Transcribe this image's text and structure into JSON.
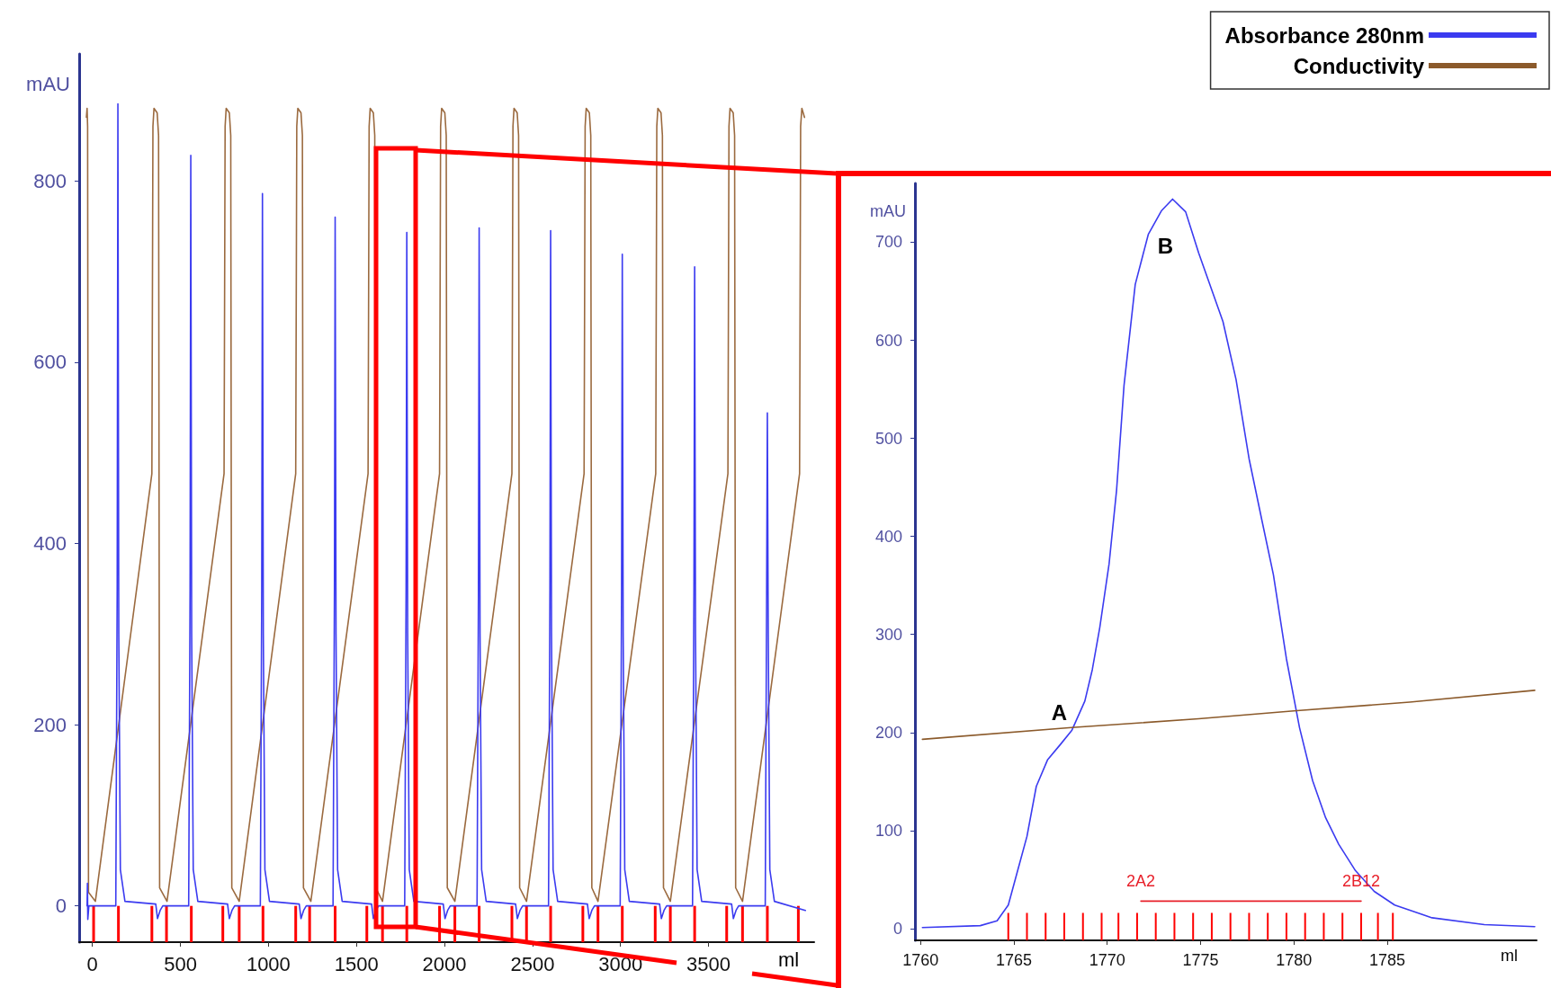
{
  "chart_data": [
    {
      "type": "line",
      "xlabel": "ml",
      "ylabel": "mAU",
      "xlim": [
        -75,
        4100
      ],
      "xticks": [
        0,
        500,
        1000,
        1500,
        2000,
        2500,
        3000,
        3500
      ],
      "ylim": [
        -40,
        940
      ],
      "yticks": [
        0,
        200,
        400,
        600,
        800
      ],
      "marker": "none",
      "line_style": "solid",
      "series": [
        {
          "color": "#9b6a3f",
          "x": [
            -34,
            -30,
            -27,
            -22,
            17,
            338,
            344,
            350,
            368,
            376,
            382,
            424,
            748,
            754,
            760,
            778,
            786,
            792,
            834,
            1155,
            1161,
            1167,
            1185,
            1193,
            1199,
            1241,
            1566,
            1572,
            1578,
            1596,
            1604,
            1610,
            1648,
            1972,
            1978,
            1984,
            2002,
            2010,
            2016,
            2059,
            2383,
            2389,
            2395,
            2413,
            2421,
            2427,
            2466,
            2793,
            2799,
            2805,
            2823,
            2831,
            2837,
            2872,
            3200,
            3206,
            3212,
            3230,
            3238,
            3244,
            3283,
            3610,
            3616,
            3622,
            3640,
            3648,
            3654,
            3693,
            4017,
            4023,
            4030,
            4045
          ],
          "values": [
            870,
            880,
            860,
            15,
            5,
            477,
            860,
            880,
            875,
            850,
            20,
            5,
            477,
            860,
            880,
            875,
            850,
            20,
            5,
            477,
            860,
            880,
            875,
            850,
            20,
            5,
            477,
            860,
            880,
            875,
            850,
            20,
            5,
            477,
            860,
            880,
            875,
            850,
            20,
            5,
            477,
            860,
            880,
            875,
            850,
            20,
            5,
            477,
            860,
            880,
            875,
            850,
            20,
            5,
            477,
            860,
            880,
            875,
            850,
            20,
            5,
            477,
            860,
            880,
            875,
            850,
            20,
            5,
            477,
            860,
            880,
            870
          ]
        },
        {
          "color": "#3b3bf0",
          "x": [
            -30,
            -28,
            -26,
            -20,
            133,
            141,
            145,
            150,
            159,
            185,
            360,
            370,
            385,
            400,
            547,
            555,
            559,
            564,
            573,
            599,
            768,
            778,
            793,
            808,
            954,
            962,
            966,
            971,
            980,
            1006,
            1175,
            1185,
            1200,
            1215,
            1367,
            1375,
            1379,
            1384,
            1393,
            1419,
            1586,
            1596,
            1611,
            1626,
            1774,
            1782,
            1786,
            1791,
            1800,
            1826,
            1993,
            2003,
            2018,
            2033,
            2185,
            2193,
            2197,
            2202,
            2211,
            2237,
            2404,
            2414,
            2429,
            2444,
            2591,
            2599,
            2603,
            2608,
            2617,
            2643,
            2812,
            2822,
            2837,
            2852,
            2998,
            3006,
            3010,
            3015,
            3024,
            3050,
            3222,
            3232,
            3247,
            3262,
            3409,
            3417,
            3421,
            3426,
            3435,
            3461,
            3631,
            3641,
            3656,
            3671,
            3822,
            3830,
            3834,
            3839,
            3848,
            3874,
            4050
          ],
          "values": [
            0,
            25,
            -15,
            0,
            0,
            350,
            885,
            300,
            40,
            5,
            2,
            -14,
            -5,
            0,
            0,
            350,
            828,
            300,
            40,
            5,
            2,
            -14,
            -5,
            0,
            0,
            350,
            786,
            300,
            40,
            5,
            2,
            -14,
            -5,
            0,
            0,
            350,
            760,
            300,
            40,
            5,
            2,
            -14,
            -5,
            0,
            0,
            350,
            743,
            300,
            40,
            5,
            2,
            -14,
            -5,
            0,
            0,
            350,
            748,
            300,
            40,
            5,
            2,
            -14,
            -5,
            0,
            0,
            350,
            745,
            300,
            40,
            5,
            2,
            -14,
            -5,
            0,
            0,
            350,
            719,
            300,
            40,
            5,
            2,
            -14,
            -5,
            0,
            0,
            350,
            705,
            300,
            40,
            5,
            2,
            -14,
            -5,
            0,
            0,
            350,
            544,
            300,
            40,
            5,
            -5
          ]
        },
        {
          "type": "bar",
          "color": "#ff0000",
          "x": [
            7,
            148,
            338,
            421,
            562,
            741,
            834,
            969,
            1155,
            1234,
            1379,
            1559,
            1648,
            1786,
            1972,
            2059,
            2197,
            2383,
            2466,
            2603,
            2786,
            2872,
            3010,
            3197,
            3283,
            3421,
            3603,
            3693,
            3834,
            4010
          ],
          "base": [
            -40,
            -40,
            -40,
            -40,
            -40,
            -40,
            -40,
            -40,
            -40,
            -40,
            -40,
            -40,
            -40,
            -40,
            -40,
            -40,
            -40,
            -40,
            -40,
            -40,
            -40,
            -40,
            -40,
            -40,
            -40,
            -40,
            -40,
            -40,
            -40,
            -40
          ],
          "values": [
            40,
            40,
            40,
            40,
            40,
            40,
            40,
            40,
            40,
            40,
            40,
            40,
            40,
            40,
            40,
            40,
            40,
            40,
            40,
            40,
            40,
            40,
            40,
            40,
            40,
            40,
            40,
            40,
            40,
            40
          ]
        }
      ]
    },
    {
      "type": "line",
      "xlabel": "ml",
      "ylabel": "mAU",
      "xlim": [
        1759.7,
        1793
      ],
      "xticks": [
        1760,
        1765,
        1770,
        1775,
        1780,
        1785
      ],
      "ylim": [
        -12,
        760
      ],
      "yticks": [
        0,
        100,
        200,
        300,
        400,
        500,
        600,
        700
      ],
      "marker": "none",
      "line_style": "solid",
      "legend": "top right",
      "series": [
        {
          "name": "Absorbance 280nm",
          "color": "#3b3bf0",
          "x": [
            1760.1,
            1763.2,
            1764.1,
            1764.7,
            1765.2,
            1765.7,
            1766.2,
            1766.8,
            1767.5,
            1768.1,
            1768.8,
            1769.2,
            1769.6,
            1770.1,
            1770.5,
            1770.9,
            1771.5,
            1772.2,
            1772.9,
            1773.5,
            1774.2,
            1774.9,
            1776.2,
            1776.9,
            1777.6,
            1778.3,
            1778.9,
            1779.6,
            1780.3,
            1781.0,
            1781.7,
            1782.4,
            1783.3,
            1784.3,
            1785.4,
            1787.4,
            1790.2,
            1792.9
          ],
          "values": [
            1,
            3,
            8,
            24,
            59,
            94,
            145,
            172,
            188,
            202,
            232,
            264,
            307,
            372,
            447,
            554,
            657,
            708,
            732,
            744,
            731,
            689,
            619,
            560,
            479,
            415,
            361,
            275,
            205,
            151,
            113,
            86,
            59,
            38,
            24,
            11,
            4,
            2
          ]
        },
        {
          "name": "Conductivity",
          "color": "#8b5a2b",
          "x": [
            1760.1,
            1768.1,
            1774.9,
            1780.0,
            1786.2,
            1792.9
          ],
          "values": [
            193,
            205,
            214,
            222,
            231,
            243
          ]
        },
        {
          "type": "line",
          "color": "#e8202a",
          "x": [
            1771.8,
            1783.6
          ],
          "values": [
            28,
            28
          ]
        },
        {
          "type": "bar",
          "color": "#ff0000",
          "x": [
            1764.7,
            1765.7,
            1766.7,
            1767.7,
            1768.7,
            1769.7,
            1770.6,
            1771.6,
            1772.6,
            1773.6,
            1774.6,
            1775.6,
            1776.6,
            1777.6,
            1778.6,
            1779.6,
            1780.6,
            1781.6,
            1782.6,
            1783.6,
            1784.5,
            1785.3
          ],
          "base": [
            -12,
            -12,
            -12,
            -12,
            -12,
            -12,
            -12,
            -12,
            -12,
            -12,
            -12,
            -12,
            -12,
            -12,
            -12,
            -12,
            -12,
            -12,
            -12,
            -12,
            -12,
            -12
          ],
          "values": [
            28,
            28,
            28,
            28,
            28,
            28,
            28,
            28,
            28,
            28,
            28,
            28,
            28,
            28,
            28,
            28,
            28,
            28,
            28,
            28,
            28,
            28
          ]
        }
      ],
      "annotations": [
        {
          "text": "A",
          "x": 1768.1,
          "y": 202
        },
        {
          "text": "B",
          "x": 1773.5,
          "y": 744
        },
        {
          "text": "2A2",
          "x": 1771.8,
          "y": 28
        },
        {
          "text": "2B12",
          "x": 1783.6,
          "y": 28
        }
      ]
    }
  ]
}
